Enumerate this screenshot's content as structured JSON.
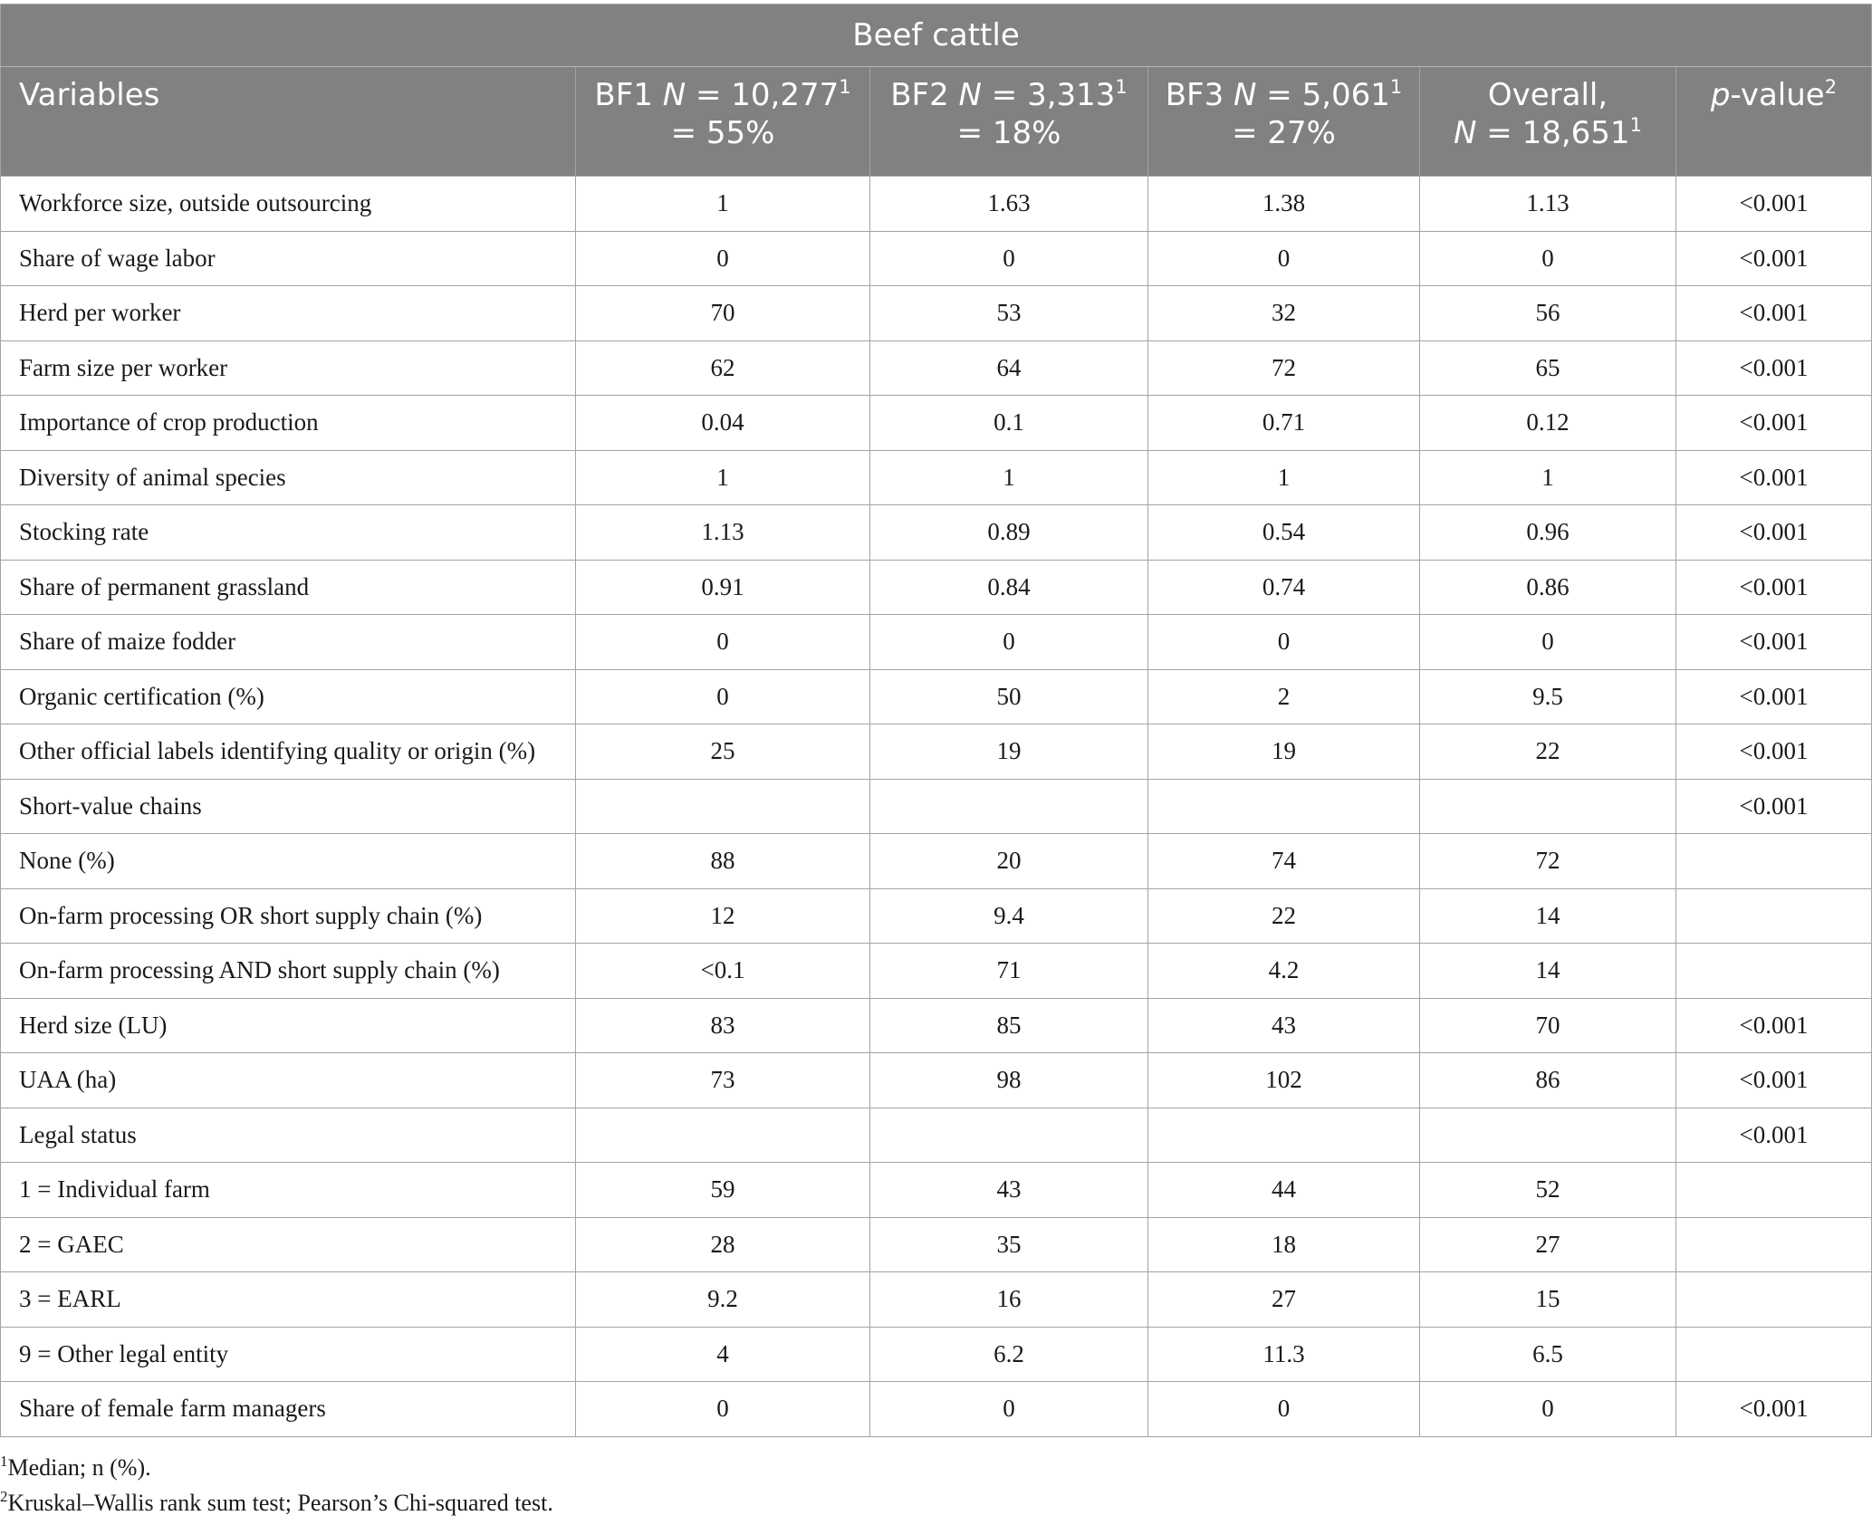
{
  "table": {
    "title": "Beef cattle",
    "headers": {
      "variables": "Variables",
      "bf1_name": "BF1",
      "bf1_n_label": "N",
      "bf1_n": " = 10,277",
      "bf1_pct": "= 55%",
      "bf2_name": "BF2",
      "bf2_n_label": "N",
      "bf2_n": " = 3,313",
      "bf2_pct": "= 18%",
      "bf3_name": "BF3",
      "bf3_n_label": "N",
      "bf3_n": " = 5,061",
      "bf3_pct": "= 27%",
      "overall_label": "Overall,",
      "overall_n_label": "N",
      "overall_n": " = 18,651",
      "pvalue_p": "p",
      "pvalue_rest": "-value",
      "sup1": "1",
      "sup2": "2"
    },
    "rows": [
      {
        "label": "Workforce size, outside outsourcing",
        "bf1": "1",
        "bf2": "1.63",
        "bf3": "1.38",
        "overall": "1.13",
        "p": "<0.001"
      },
      {
        "label": "Share of wage labor",
        "bf1": "0",
        "bf2": "0",
        "bf3": "0",
        "overall": "0",
        "p": "<0.001"
      },
      {
        "label": "Herd per worker",
        "bf1": "70",
        "bf2": "53",
        "bf3": "32",
        "overall": "56",
        "p": "<0.001"
      },
      {
        "label": "Farm size per worker",
        "bf1": "62",
        "bf2": "64",
        "bf3": "72",
        "overall": "65",
        "p": "<0.001"
      },
      {
        "label": "Importance of crop production",
        "bf1": "0.04",
        "bf2": "0.1",
        "bf3": "0.71",
        "overall": "0.12",
        "p": "<0.001"
      },
      {
        "label": "Diversity of animal species",
        "bf1": "1",
        "bf2": "1",
        "bf3": "1",
        "overall": "1",
        "p": "<0.001"
      },
      {
        "label": "Stocking rate",
        "bf1": "1.13",
        "bf2": "0.89",
        "bf3": "0.54",
        "overall": "0.96",
        "p": "<0.001"
      },
      {
        "label": "Share of permanent grassland",
        "bf1": "0.91",
        "bf2": "0.84",
        "bf3": "0.74",
        "overall": "0.86",
        "p": "<0.001"
      },
      {
        "label": "Share of maize fodder",
        "bf1": "0",
        "bf2": "0",
        "bf3": "0",
        "overall": "0",
        "p": "<0.001"
      },
      {
        "label": "Organic certification (%)",
        "bf1": "0",
        "bf2": "50",
        "bf3": "2",
        "overall": "9.5",
        "p": "<0.001"
      },
      {
        "label": "Other official labels identifying quality or origin (%)",
        "bf1": "25",
        "bf2": "19",
        "bf3": "19",
        "overall": "22",
        "p": "<0.001"
      },
      {
        "label": "Short-value chains",
        "bf1": "",
        "bf2": "",
        "bf3": "",
        "overall": "",
        "p": "<0.001"
      },
      {
        "label": "None (%)",
        "bf1": "88",
        "bf2": "20",
        "bf3": "74",
        "overall": "72",
        "p": ""
      },
      {
        "label": "On-farm processing OR short supply chain (%)",
        "bf1": "12",
        "bf2": "9.4",
        "bf3": "22",
        "overall": "14",
        "p": ""
      },
      {
        "label": "On-farm processing AND short supply chain (%)",
        "bf1": "<0.1",
        "bf2": "71",
        "bf3": "4.2",
        "overall": "14",
        "p": ""
      },
      {
        "label": "Herd size (LU)",
        "bf1": "83",
        "bf2": "85",
        "bf3": "43",
        "overall": "70",
        "p": "<0.001"
      },
      {
        "label": "UAA (ha)",
        "bf1": "73",
        "bf2": "98",
        "bf3": "102",
        "overall": "86",
        "p": "<0.001"
      },
      {
        "label": "Legal status",
        "bf1": "",
        "bf2": "",
        "bf3": "",
        "overall": "",
        "p": "<0.001"
      },
      {
        "label": "1 = Individual farm",
        "bf1": "59",
        "bf2": "43",
        "bf3": "44",
        "overall": "52",
        "p": ""
      },
      {
        "label": "2 = GAEC",
        "bf1": "28",
        "bf2": "35",
        "bf3": "18",
        "overall": "27",
        "p": ""
      },
      {
        "label": "3 = EARL",
        "bf1": "9.2",
        "bf2": "16",
        "bf3": "27",
        "overall": "15",
        "p": ""
      },
      {
        "label": "9 = Other legal entity",
        "bf1": "4",
        "bf2": "6.2",
        "bf3": "11.3",
        "overall": "6.5",
        "p": ""
      },
      {
        "label": "Share of female farm managers",
        "bf1": "0",
        "bf2": "0",
        "bf3": "0",
        "overall": "0",
        "p": "<0.001"
      }
    ]
  },
  "footnotes": [
    {
      "mark": "1",
      "text": "Median; n (%)."
    },
    {
      "mark": "2",
      "text": "Kruskal–Wallis rank sum test; Pearson’s Chi-squared test."
    }
  ]
}
